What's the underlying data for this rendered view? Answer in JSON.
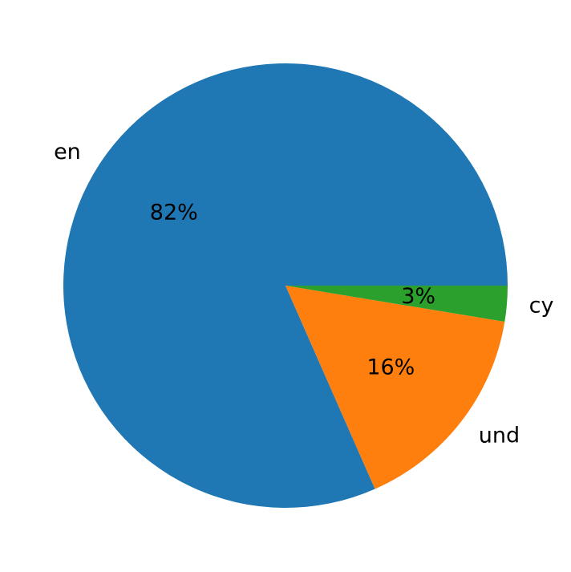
{
  "chart_data": {
    "type": "pie",
    "title": "",
    "start_angle_deg": 0,
    "direction": "counterclockwise",
    "slices": [
      {
        "label": "en",
        "value": 81.6,
        "pct_label": "82%",
        "color": "#1f77b4"
      },
      {
        "label": "und",
        "value": 15.8,
        "pct_label": "16%",
        "color": "#ff7f0e"
      },
      {
        "label": "cy",
        "value": 2.6,
        "pct_label": "3%",
        "color": "#2ca02c"
      }
    ]
  }
}
